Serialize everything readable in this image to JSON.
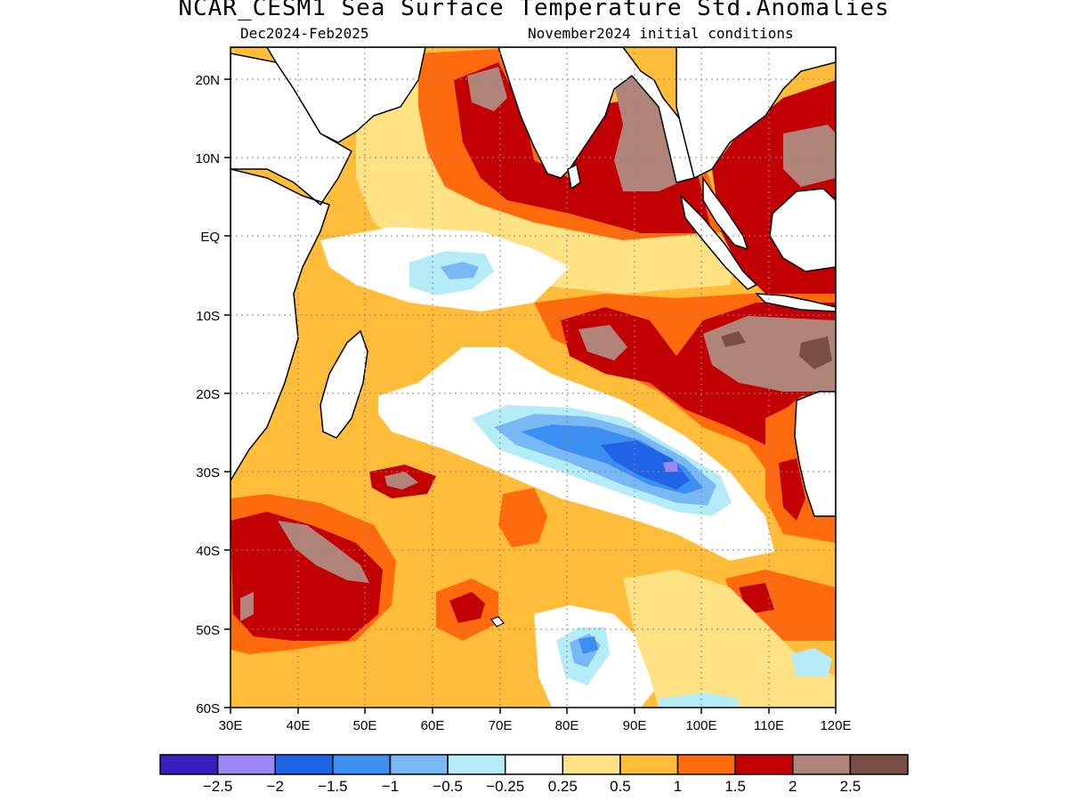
{
  "title": "NCAR_CESM1 Sea Surface Temperature Std.Anomalies",
  "subtitle_left": "Dec2024-Feb2025",
  "subtitle_right": "November2024 initial conditions",
  "map": {
    "lon_range": [
      30,
      120
    ],
    "lat_range": [
      -60,
      24
    ],
    "lon_ticks": [
      "30E",
      "40E",
      "50E",
      "60E",
      "70E",
      "80E",
      "90E",
      "100E",
      "110E",
      "120E"
    ],
    "lat_ticks": [
      "20N",
      "10N",
      "EQ",
      "10S",
      "20S",
      "30S",
      "40S",
      "50S",
      "60S"
    ],
    "grid": "dotted"
  },
  "colorbar": {
    "colors": [
      "#3a1fbf",
      "#9b87f5",
      "#1f63e6",
      "#3c8ef0",
      "#78b8f5",
      "#b4ecf7",
      "#ffffff",
      "#ffe283",
      "#ffbd3a",
      "#ff6a0d",
      "#c20003",
      "#b08479",
      "#7a4e44"
    ],
    "labels": [
      "-2.5",
      "-2",
      "-1.5",
      "-1",
      "-0.5",
      "-0.25",
      "0.25",
      "0.5",
      "1",
      "1.5",
      "2",
      "2.5"
    ]
  },
  "anomaly_regions": [
    {
      "name": "arabian-sea-warm",
      "level": 1.5
    },
    {
      "name": "bay-of-bengal-strong-warm",
      "level": 2.5
    },
    {
      "name": "east-equatorial-warm",
      "level": 2
    },
    {
      "name": "maritime-continent-warm",
      "level": 2.5
    },
    {
      "name": "west-equatorial-cool",
      "level": -0.5
    },
    {
      "name": "central-subtropical-cold",
      "level": -2
    },
    {
      "name": "southwest-warm",
      "level": 2.5
    },
    {
      "name": "southeast-warm",
      "level": 1.5
    },
    {
      "name": "southern-ocean-cool",
      "level": -1
    }
  ]
}
